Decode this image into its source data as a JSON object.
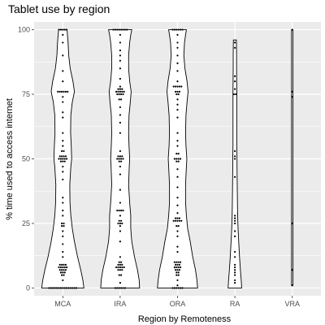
{
  "chart_data": {
    "type": "violin",
    "title": "Tablet use by region",
    "xlabel": "Region by Remoteness",
    "ylabel": "% time used to access internet",
    "categories": [
      "MCA",
      "IRA",
      "ORA",
      "RA",
      "VRA"
    ],
    "ylim": [
      -3,
      103
    ],
    "yticks": [
      0,
      25,
      50,
      75,
      100
    ],
    "grid": true,
    "legend": "none",
    "colors": {
      "panel": "#ebebeb",
      "grid": "#ffffff",
      "violin_fill": "#ffffff",
      "violin_stroke": "#000000",
      "points": "#000000",
      "ticks": "#4d4d4d"
    },
    "series": [
      {
        "category": "MCA",
        "density": [
          [
            0,
            1.0
          ],
          [
            3,
            0.95
          ],
          [
            7,
            0.85
          ],
          [
            12,
            0.7
          ],
          [
            18,
            0.55
          ],
          [
            23,
            0.45
          ],
          [
            28,
            0.38
          ],
          [
            33,
            0.34
          ],
          [
            40,
            0.33
          ],
          [
            47,
            0.38
          ],
          [
            50,
            0.42
          ],
          [
            55,
            0.4
          ],
          [
            60,
            0.37
          ],
          [
            67,
            0.38
          ],
          [
            72,
            0.45
          ],
          [
            76,
            0.55
          ],
          [
            80,
            0.48
          ],
          [
            85,
            0.35
          ],
          [
            90,
            0.28
          ],
          [
            95,
            0.25
          ],
          [
            98,
            0.22
          ],
          [
            100,
            0.2
          ]
        ],
        "points": [
          {
            "y": 100,
            "n": 5
          },
          {
            "y": 98,
            "n": 1
          },
          {
            "y": 95,
            "n": 1
          },
          {
            "y": 90,
            "n": 1
          },
          {
            "y": 84,
            "n": 1
          },
          {
            "y": 80,
            "n": 1
          },
          {
            "y": 76,
            "n": 6
          },
          {
            "y": 74,
            "n": 1
          },
          {
            "y": 72,
            "n": 1
          },
          {
            "y": 68,
            "n": 1
          },
          {
            "y": 66,
            "n": 1
          },
          {
            "y": 60,
            "n": 1
          },
          {
            "y": 57,
            "n": 1
          },
          {
            "y": 55,
            "n": 1
          },
          {
            "y": 53,
            "n": 2
          },
          {
            "y": 51,
            "n": 4
          },
          {
            "y": 50,
            "n": 5
          },
          {
            "y": 49,
            "n": 3
          },
          {
            "y": 47,
            "n": 1
          },
          {
            "y": 45,
            "n": 1
          },
          {
            "y": 42,
            "n": 1
          },
          {
            "y": 35,
            "n": 1
          },
          {
            "y": 33,
            "n": 1
          },
          {
            "y": 30,
            "n": 1
          },
          {
            "y": 28,
            "n": 1
          },
          {
            "y": 25,
            "n": 2
          },
          {
            "y": 24,
            "n": 2
          },
          {
            "y": 22,
            "n": 1
          },
          {
            "y": 20,
            "n": 1
          },
          {
            "y": 17,
            "n": 1
          },
          {
            "y": 14,
            "n": 1
          },
          {
            "y": 12,
            "n": 1
          },
          {
            "y": 9,
            "n": 4
          },
          {
            "y": 8,
            "n": 5
          },
          {
            "y": 7,
            "n": 4
          },
          {
            "y": 6,
            "n": 3
          },
          {
            "y": 5,
            "n": 2
          },
          {
            "y": 3,
            "n": 1
          },
          {
            "y": 0,
            "n": 15
          }
        ]
      },
      {
        "category": "IRA",
        "density": [
          [
            0,
            0.92
          ],
          [
            3,
            0.9
          ],
          [
            7,
            0.82
          ],
          [
            12,
            0.68
          ],
          [
            18,
            0.55
          ],
          [
            23,
            0.5
          ],
          [
            28,
            0.5
          ],
          [
            33,
            0.45
          ],
          [
            40,
            0.4
          ],
          [
            47,
            0.43
          ],
          [
            50,
            0.45
          ],
          [
            55,
            0.42
          ],
          [
            60,
            0.4
          ],
          [
            67,
            0.42
          ],
          [
            72,
            0.48
          ],
          [
            76,
            0.52
          ],
          [
            80,
            0.45
          ],
          [
            85,
            0.4
          ],
          [
            90,
            0.4
          ],
          [
            95,
            0.45
          ],
          [
            98,
            0.5
          ],
          [
            100,
            0.55
          ]
        ],
        "points": [
          {
            "y": 100,
            "n": 8
          },
          {
            "y": 98,
            "n": 1
          },
          {
            "y": 95,
            "n": 1
          },
          {
            "y": 92,
            "n": 1
          },
          {
            "y": 90,
            "n": 1
          },
          {
            "y": 88,
            "n": 1
          },
          {
            "y": 85,
            "n": 1
          },
          {
            "y": 81,
            "n": 1
          },
          {
            "y": 78,
            "n": 1
          },
          {
            "y": 77,
            "n": 3
          },
          {
            "y": 76,
            "n": 5
          },
          {
            "y": 75,
            "n": 4
          },
          {
            "y": 73,
            "n": 2
          },
          {
            "y": 70,
            "n": 1
          },
          {
            "y": 67,
            "n": 1
          },
          {
            "y": 64,
            "n": 1
          },
          {
            "y": 60,
            "n": 1
          },
          {
            "y": 53,
            "n": 1
          },
          {
            "y": 51,
            "n": 3
          },
          {
            "y": 50,
            "n": 4
          },
          {
            "y": 49,
            "n": 2
          },
          {
            "y": 47,
            "n": 1
          },
          {
            "y": 44,
            "n": 1
          },
          {
            "y": 38,
            "n": 1
          },
          {
            "y": 33,
            "n": 1
          },
          {
            "y": 30,
            "n": 4
          },
          {
            "y": 28,
            "n": 1
          },
          {
            "y": 26,
            "n": 2
          },
          {
            "y": 25,
            "n": 3
          },
          {
            "y": 24,
            "n": 1
          },
          {
            "y": 22,
            "n": 1
          },
          {
            "y": 18,
            "n": 1
          },
          {
            "y": 12,
            "n": 1
          },
          {
            "y": 10,
            "n": 2
          },
          {
            "y": 9,
            "n": 3
          },
          {
            "y": 8,
            "n": 5
          },
          {
            "y": 7,
            "n": 3
          },
          {
            "y": 5,
            "n": 2
          },
          {
            "y": 2,
            "n": 1
          },
          {
            "y": 0,
            "n": 6
          }
        ]
      },
      {
        "category": "ORA",
        "density": [
          [
            0,
            0.95
          ],
          [
            3,
            0.92
          ],
          [
            7,
            0.85
          ],
          [
            12,
            0.72
          ],
          [
            18,
            0.6
          ],
          [
            23,
            0.48
          ],
          [
            28,
            0.42
          ],
          [
            33,
            0.38
          ],
          [
            40,
            0.38
          ],
          [
            47,
            0.42
          ],
          [
            50,
            0.44
          ],
          [
            55,
            0.4
          ],
          [
            60,
            0.38
          ],
          [
            67,
            0.4
          ],
          [
            72,
            0.45
          ],
          [
            76,
            0.5
          ],
          [
            80,
            0.45
          ],
          [
            85,
            0.35
          ],
          [
            90,
            0.3
          ],
          [
            95,
            0.33
          ],
          [
            98,
            0.38
          ],
          [
            100,
            0.42
          ]
        ],
        "points": [
          {
            "y": 100,
            "n": 6
          },
          {
            "y": 98,
            "n": 1
          },
          {
            "y": 95,
            "n": 1
          },
          {
            "y": 93,
            "n": 1
          },
          {
            "y": 90,
            "n": 1
          },
          {
            "y": 87,
            "n": 1
          },
          {
            "y": 84,
            "n": 1
          },
          {
            "y": 80,
            "n": 1
          },
          {
            "y": 78,
            "n": 5
          },
          {
            "y": 76,
            "n": 3
          },
          {
            "y": 75,
            "n": 2
          },
          {
            "y": 73,
            "n": 1
          },
          {
            "y": 71,
            "n": 1
          },
          {
            "y": 69,
            "n": 1
          },
          {
            "y": 66,
            "n": 1
          },
          {
            "y": 60,
            "n": 1
          },
          {
            "y": 57,
            "n": 1
          },
          {
            "y": 55,
            "n": 1
          },
          {
            "y": 52,
            "n": 2
          },
          {
            "y": 50,
            "n": 4
          },
          {
            "y": 49,
            "n": 2
          },
          {
            "y": 46,
            "n": 1
          },
          {
            "y": 43,
            "n": 1
          },
          {
            "y": 39,
            "n": 1
          },
          {
            "y": 35,
            "n": 1
          },
          {
            "y": 32,
            "n": 1
          },
          {
            "y": 29,
            "n": 1
          },
          {
            "y": 27,
            "n": 3
          },
          {
            "y": 26,
            "n": 5
          },
          {
            "y": 24,
            "n": 2
          },
          {
            "y": 22,
            "n": 1
          },
          {
            "y": 20,
            "n": 1
          },
          {
            "y": 16,
            "n": 1
          },
          {
            "y": 14,
            "n": 1
          },
          {
            "y": 10,
            "n": 4
          },
          {
            "y": 9,
            "n": 3
          },
          {
            "y": 8,
            "n": 4
          },
          {
            "y": 7,
            "n": 3
          },
          {
            "y": 6,
            "n": 2
          },
          {
            "y": 5,
            "n": 2
          },
          {
            "y": 3,
            "n": 1
          },
          {
            "y": 1,
            "n": 1
          },
          {
            "y": 0,
            "n": 6
          }
        ]
      },
      {
        "category": "RA",
        "density": [
          [
            0,
            0.32
          ],
          [
            3,
            0.3
          ],
          [
            7,
            0.26
          ],
          [
            12,
            0.22
          ],
          [
            18,
            0.18
          ],
          [
            23,
            0.15
          ],
          [
            28,
            0.13
          ],
          [
            33,
            0.12
          ],
          [
            40,
            0.11
          ],
          [
            47,
            0.1
          ],
          [
            50,
            0.1
          ],
          [
            55,
            0.09
          ],
          [
            60,
            0.09
          ],
          [
            67,
            0.09
          ],
          [
            72,
            0.09
          ],
          [
            76,
            0.09
          ],
          [
            80,
            0.085
          ],
          [
            85,
            0.08
          ],
          [
            90,
            0.08
          ],
          [
            94,
            0.075
          ],
          [
            96,
            0.07
          ]
        ],
        "points": [
          {
            "y": 95,
            "n": 1
          },
          {
            "y": 93,
            "n": 1
          },
          {
            "y": 82,
            "n": 1
          },
          {
            "y": 80,
            "n": 1
          },
          {
            "y": 77,
            "n": 1
          },
          {
            "y": 75,
            "n": 2
          },
          {
            "y": 53,
            "n": 1
          },
          {
            "y": 51,
            "n": 1
          },
          {
            "y": 50,
            "n": 1
          },
          {
            "y": 43,
            "n": 1
          },
          {
            "y": 28,
            "n": 1
          },
          {
            "y": 27,
            "n": 1
          },
          {
            "y": 26,
            "n": 1
          },
          {
            "y": 25,
            "n": 1
          },
          {
            "y": 22,
            "n": 1
          },
          {
            "y": 20,
            "n": 1
          },
          {
            "y": 14,
            "n": 1
          },
          {
            "y": 12,
            "n": 1
          },
          {
            "y": 9,
            "n": 1
          },
          {
            "y": 8,
            "n": 1
          },
          {
            "y": 7,
            "n": 1
          },
          {
            "y": 6,
            "n": 1
          },
          {
            "y": 5,
            "n": 1
          },
          {
            "y": 3,
            "n": 1
          },
          {
            "y": 2,
            "n": 1
          }
        ]
      },
      {
        "category": "VRA",
        "density": [
          [
            1,
            0.035
          ],
          [
            7,
            0.035
          ],
          [
            25,
            0.035
          ],
          [
            50,
            0.035
          ],
          [
            75,
            0.035
          ],
          [
            100,
            0.035
          ]
        ],
        "points": [
          {
            "y": 100,
            "n": 1
          },
          {
            "y": 76,
            "n": 1
          },
          {
            "y": 74,
            "n": 1
          },
          {
            "y": 25,
            "n": 1
          },
          {
            "y": 7,
            "n": 1
          },
          {
            "y": 1,
            "n": 1
          }
        ]
      }
    ]
  }
}
